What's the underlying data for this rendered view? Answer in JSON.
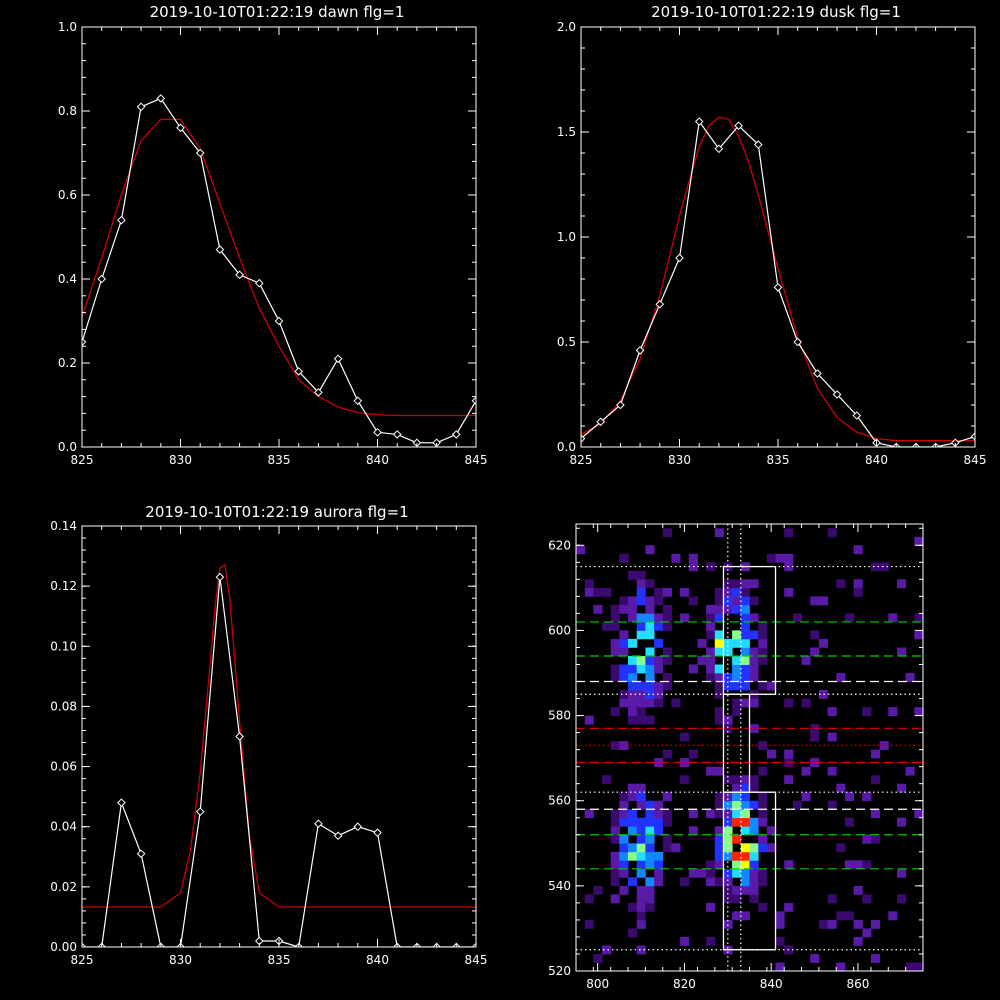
{
  "chart_data": [
    {
      "type": "line",
      "title": "2019-10-10T01:22:19 dawn flg=1",
      "xlim": [
        825,
        845
      ],
      "ylim": [
        0,
        1.0
      ],
      "xticks": [
        "825",
        "830",
        "835",
        "840",
        "845"
      ],
      "yticks": [
        "0.0",
        "0.2",
        "0.4",
        "0.6",
        "0.8",
        "1.0"
      ],
      "colors": {
        "data": "#ffffff",
        "fit": "#cc0000"
      },
      "series": [
        {
          "x": [
            825,
            826,
            827,
            828,
            829,
            830,
            831,
            832,
            833,
            834,
            835,
            836,
            837,
            838,
            839,
            840,
            841,
            842,
            843,
            844,
            845
          ],
          "values": [
            0.25,
            0.4,
            0.54,
            0.81,
            0.83,
            0.76,
            0.7,
            0.47,
            0.41,
            0.39,
            0.3,
            0.18,
            0.13,
            0.21,
            0.11,
            0.035,
            0.03,
            0.01,
            0.01,
            0.03,
            0.11
          ]
        },
        {
          "x": [
            825,
            826,
            827,
            828,
            829,
            830,
            831,
            832,
            833,
            834,
            835,
            836,
            837,
            838,
            839,
            840,
            841,
            842,
            843,
            844,
            845
          ],
          "values": [
            0.31,
            0.45,
            0.6,
            0.73,
            0.78,
            0.78,
            0.71,
            0.58,
            0.45,
            0.33,
            0.24,
            0.16,
            0.12,
            0.095,
            0.082,
            0.077,
            0.075,
            0.075,
            0.075,
            0.075,
            0.075
          ]
        }
      ]
    },
    {
      "type": "line",
      "title": "2019-10-10T01:22:19 dusk flg=1",
      "xlim": [
        825,
        845
      ],
      "ylim": [
        0,
        2.0
      ],
      "xticks": [
        "825",
        "830",
        "835",
        "840",
        "845"
      ],
      "yticks": [
        "0.0",
        "0.5",
        "1.0",
        "1.5",
        "2.0"
      ],
      "colors": {
        "data": "#ffffff",
        "fit": "#cc0000"
      },
      "series": [
        {
          "x": [
            825,
            826,
            827,
            828,
            829,
            830,
            831,
            832,
            833,
            834,
            835,
            836,
            837,
            838,
            839,
            840,
            841,
            842,
            843,
            844,
            845
          ],
          "values": [
            0.04,
            0.12,
            0.2,
            0.46,
            0.68,
            0.9,
            1.55,
            1.42,
            1.53,
            1.44,
            0.76,
            0.5,
            0.35,
            0.25,
            0.15,
            0.02,
            0.0,
            0.0,
            0.0,
            0.02,
            0.05
          ]
        },
        {
          "x": [
            825,
            826,
            827,
            828,
            829,
            830,
            830.5,
            831,
            831.5,
            832,
            832.5,
            833,
            833.5,
            834,
            835,
            836,
            837,
            838,
            839,
            840,
            841,
            842,
            843,
            844,
            845
          ],
          "values": [
            0.06,
            0.11,
            0.22,
            0.42,
            0.72,
            1.1,
            1.27,
            1.43,
            1.53,
            1.57,
            1.56,
            1.48,
            1.36,
            1.2,
            0.85,
            0.52,
            0.28,
            0.14,
            0.07,
            0.04,
            0.03,
            0.03,
            0.03,
            0.03,
            0.03
          ]
        }
      ]
    },
    {
      "type": "line",
      "title": "2019-10-10T01:22:19 aurora flg=1",
      "xlim": [
        825,
        845
      ],
      "ylim": [
        0,
        0.14
      ],
      "xticks": [
        "825",
        "830",
        "835",
        "840",
        "845"
      ],
      "yticks": [
        "0.00",
        "0.02",
        "0.04",
        "0.06",
        "0.08",
        "0.10",
        "0.12",
        "0.14"
      ],
      "colors": {
        "data": "#ffffff",
        "fit": "#cc0000"
      },
      "series": [
        {
          "x": [
            825,
            826,
            827,
            828,
            829,
            830,
            831,
            832,
            833,
            834,
            835,
            836,
            837,
            838,
            839,
            840,
            841,
            842,
            843,
            844,
            845
          ],
          "values": [
            0.0,
            0.0,
            0.048,
            0.031,
            0.0,
            0.0,
            0.045,
            0.123,
            0.07,
            0.002,
            0.002,
            0.0,
            0.041,
            0.037,
            0.04,
            0.038,
            0.0,
            0.0,
            0.0,
            0.0,
            0.0
          ]
        },
        {
          "x": [
            825,
            829,
            830,
            830.5,
            831,
            831.5,
            831.75,
            832,
            832.25,
            832.5,
            833,
            833.5,
            834,
            835,
            845
          ],
          "values": [
            0.0133,
            0.0133,
            0.018,
            0.032,
            0.058,
            0.094,
            0.113,
            0.126,
            0.127,
            0.116,
            0.075,
            0.037,
            0.018,
            0.0133,
            0.0133
          ]
        }
      ]
    },
    {
      "type": "heatmap",
      "xlim": [
        795,
        875
      ],
      "ylim": [
        520,
        625
      ],
      "xticks": [
        "800",
        "820",
        "840",
        "860"
      ],
      "yticks": [
        "520",
        "540",
        "560",
        "580",
        "600",
        "620"
      ],
      "colorscale": [
        "#3a0a6e",
        "#5a1aa8",
        "#2233ff",
        "#1188ff",
        "#22ddff",
        "#88ff88",
        "#ffff00",
        "#ff2200"
      ],
      "clusters": [
        {
          "x": 810,
          "y": 596,
          "w": 3.5,
          "h": 9,
          "peak": 0.6
        },
        {
          "x": 810,
          "y": 549,
          "w": 3.5,
          "h": 8,
          "peak": 0.6
        },
        {
          "x": 832,
          "y": 597,
          "w": 3.0,
          "h": 8,
          "peak": 0.7
        },
        {
          "x": 833,
          "y": 551,
          "w": 3.0,
          "h": 7,
          "peak": 1.0
        },
        {
          "x": 829,
          "y": 595,
          "w": 2.0,
          "h": 4,
          "peak": 0.45
        }
      ],
      "boxes": [
        {
          "x0": 829,
          "x1": 841,
          "y0": 585,
          "y1": 615
        },
        {
          "x0": 829,
          "x1": 835,
          "y0": 562,
          "y1": 585
        },
        {
          "x0": 829,
          "x1": 841,
          "y0": 525,
          "y1": 562
        }
      ],
      "vlines_dotted": [
        830,
        833
      ],
      "hlines": [
        {
          "y": 615,
          "style": "dotted",
          "color": "#ffffff"
        },
        {
          "y": 602,
          "style": "dashed",
          "color": "#00cc00"
        },
        {
          "y": 594,
          "style": "dashed",
          "color": "#00cc00"
        },
        {
          "y": 588,
          "style": "dashed",
          "color": "#ffffff"
        },
        {
          "y": 585,
          "style": "dotted",
          "color": "#ffffff"
        },
        {
          "y": 577,
          "style": "dashed",
          "color": "#cc0000"
        },
        {
          "y": 573,
          "style": "dotted",
          "color": "#cc0000"
        },
        {
          "y": 569,
          "style": "dashed",
          "color": "#cc0000"
        },
        {
          "y": 562,
          "style": "dotted",
          "color": "#ffffff"
        },
        {
          "y": 558,
          "style": "dashed",
          "color": "#ffffff"
        },
        {
          "y": 552,
          "style": "dashed",
          "color": "#00cc00"
        },
        {
          "y": 544,
          "style": "dashed",
          "color": "#00cc00"
        },
        {
          "y": 525,
          "style": "dotted",
          "color": "#ffffff"
        }
      ]
    }
  ]
}
